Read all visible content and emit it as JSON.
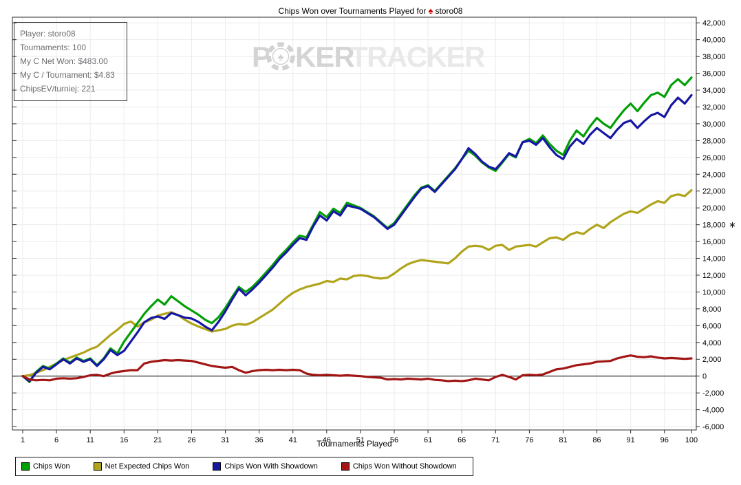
{
  "title": {
    "prefix": "Chips Won over Tournaments Played for",
    "spade_symbol": "♠",
    "player": "storo08"
  },
  "info_box": {
    "lines": [
      "Player: storo08",
      "Tournaments: 100",
      "My C Net Won: $483.00",
      "My C / Tournament: $4.83",
      "ChipsEV/turniej: 221"
    ]
  },
  "watermark": {
    "part1": "P",
    "chip_symbol": "♠",
    "part2": "KER",
    "part3": "TRACKER"
  },
  "legend": {
    "items": [
      {
        "label": "Chips Won",
        "color": "#00A005"
      },
      {
        "label": "Net Expected Chips Won",
        "color": "#AFA41A"
      },
      {
        "label": "Chips Won With Showdown",
        "color": "#1717A5"
      },
      {
        "label": "Chips Won Without Showdown",
        "color": "#A31616"
      }
    ]
  },
  "chart_data": {
    "type": "line",
    "title": "Chips Won over Tournaments Played for storo08",
    "xlabel": "Tournaments Played",
    "ylabel": "",
    "xlim": [
      1,
      100
    ],
    "ylim": [
      -6000,
      42000
    ],
    "grid": true,
    "legend_position": "bottom-left",
    "x_ticks": [
      1,
      6,
      11,
      16,
      21,
      26,
      31,
      36,
      41,
      46,
      51,
      56,
      61,
      66,
      71,
      76,
      81,
      86,
      91,
      96,
      100
    ],
    "y_ticks": [
      -6000,
      -4000,
      -2000,
      0,
      2000,
      4000,
      6000,
      8000,
      10000,
      12000,
      14000,
      16000,
      18000,
      20000,
      22000,
      24000,
      26000,
      28000,
      30000,
      32000,
      34000,
      36000,
      38000,
      40000,
      42000
    ],
    "y_axis_marker": {
      "value": 18000,
      "symbol": "∗"
    },
    "x": [
      1,
      2,
      3,
      4,
      5,
      6,
      7,
      8,
      9,
      10,
      11,
      12,
      13,
      14,
      15,
      16,
      17,
      18,
      19,
      20,
      21,
      22,
      23,
      24,
      25,
      26,
      27,
      28,
      29,
      30,
      31,
      32,
      33,
      34,
      35,
      36,
      37,
      38,
      39,
      40,
      41,
      42,
      43,
      44,
      45,
      46,
      47,
      48,
      49,
      50,
      51,
      52,
      53,
      54,
      55,
      56,
      57,
      58,
      59,
      60,
      61,
      62,
      63,
      64,
      65,
      66,
      67,
      68,
      69,
      70,
      71,
      72,
      73,
      74,
      75,
      76,
      77,
      78,
      79,
      80,
      81,
      82,
      83,
      84,
      85,
      86,
      87,
      88,
      89,
      90,
      91,
      92,
      93,
      94,
      95,
      96,
      97,
      98,
      99,
      100
    ],
    "series": [
      {
        "name": "Chips Won",
        "color": "#00A005",
        "values": [
          0,
          -700,
          500,
          1200,
          900,
          1500,
          2100,
          1600,
          2200,
          1800,
          2100,
          1300,
          2100,
          3300,
          2700,
          4100,
          5200,
          6300,
          7400,
          8300,
          9100,
          8500,
          9500,
          8900,
          8300,
          7800,
          7300,
          6700,
          6300,
          7000,
          8100,
          9400,
          10600,
          10000,
          10600,
          11400,
          12300,
          13200,
          14200,
          15000,
          15900,
          16700,
          16500,
          18000,
          19500,
          18900,
          19900,
          19400,
          20600,
          20300,
          20000,
          19500,
          19000,
          18300,
          17600,
          18200,
          19300,
          20400,
          21500,
          22400,
          22700,
          22000,
          22900,
          23800,
          24700,
          25800,
          26800,
          26200,
          25400,
          24800,
          24400,
          25400,
          26400,
          26000,
          27800,
          28200,
          27700,
          28600,
          27600,
          26800,
          26300,
          28000,
          29200,
          28500,
          29700,
          30700,
          30000,
          29500,
          30600,
          31600,
          32400,
          31500,
          32500,
          33400,
          33700,
          33200,
          34600,
          35300,
          34600,
          35500
        ]
      },
      {
        "name": "Net Expected Chips Won",
        "color": "#AFA41A",
        "values": [
          0,
          100,
          400,
          700,
          1100,
          1500,
          1900,
          2200,
          2500,
          2800,
          3200,
          3500,
          4200,
          4900,
          5500,
          6200,
          6500,
          5900,
          6400,
          6700,
          7200,
          7400,
          7600,
          7250,
          6700,
          6250,
          5900,
          5600,
          5300,
          5450,
          5600,
          6000,
          6200,
          6100,
          6400,
          6900,
          7400,
          7900,
          8600,
          9300,
          9900,
          10300,
          10600,
          10800,
          11000,
          11300,
          11200,
          11600,
          11500,
          11900,
          12000,
          11900,
          11700,
          11600,
          11700,
          12200,
          12800,
          13300,
          13600,
          13800,
          13700,
          13600,
          13500,
          13400,
          14000,
          14800,
          15400,
          15500,
          15400,
          15000,
          15500,
          15600,
          15000,
          15400,
          15500,
          15600,
          15400,
          15900,
          16400,
          16500,
          16200,
          16800,
          17100,
          16900,
          17500,
          18000,
          17600,
          18300,
          18800,
          19300,
          19600,
          19400,
          19900,
          20400,
          20800,
          20600,
          21400,
          21600,
          21400,
          22100
        ]
      },
      {
        "name": "Chips Won With Showdown",
        "color": "#1717A5",
        "values": [
          0,
          -600,
          400,
          1100,
          800,
          1400,
          2000,
          1500,
          2100,
          1700,
          2000,
          1200,
          2000,
          3100,
          2500,
          3000,
          4100,
          5200,
          6400,
          6900,
          7100,
          6800,
          7500,
          7250,
          6950,
          6850,
          6450,
          5900,
          5450,
          6450,
          7700,
          9100,
          10400,
          9600,
          10300,
          11100,
          12000,
          12900,
          13900,
          14700,
          15600,
          16400,
          16200,
          17800,
          19100,
          18500,
          19600,
          19100,
          20300,
          20100,
          19900,
          19400,
          18900,
          18200,
          17500,
          18000,
          19100,
          20200,
          21300,
          22300,
          22600,
          21900,
          22800,
          23700,
          24600,
          25800,
          27100,
          26400,
          25500,
          24900,
          24600,
          25500,
          26500,
          26100,
          27800,
          28000,
          27500,
          28300,
          27200,
          26300,
          25800,
          27300,
          28200,
          27600,
          28700,
          29500,
          28900,
          28300,
          29300,
          30100,
          30400,
          29500,
          30300,
          31000,
          31300,
          30800,
          32200,
          33100,
          32400,
          33400
        ]
      },
      {
        "name": "Chips Won Without Showdown",
        "color": "#A31616",
        "values": [
          0,
          -400,
          -500,
          -450,
          -500,
          -300,
          -250,
          -300,
          -250,
          -100,
          100,
          150,
          0,
          300,
          500,
          600,
          700,
          700,
          1500,
          1700,
          1800,
          1900,
          1850,
          1900,
          1850,
          1800,
          1600,
          1400,
          1200,
          1100,
          1000,
          1100,
          700,
          400,
          600,
          700,
          750,
          700,
          750,
          700,
          750,
          700,
          300,
          150,
          100,
          150,
          100,
          50,
          100,
          50,
          0,
          -100,
          -150,
          -200,
          -400,
          -350,
          -400,
          -300,
          -350,
          -400,
          -300,
          -450,
          -500,
          -600,
          -550,
          -600,
          -500,
          -300,
          -400,
          -500,
          -100,
          150,
          -100,
          -400,
          100,
          150,
          100,
          200,
          500,
          800,
          900,
          1100,
          1300,
          1400,
          1500,
          1700,
          1750,
          1800,
          2100,
          2300,
          2450,
          2300,
          2250,
          2350,
          2200,
          2100,
          2150,
          2100,
          2050,
          2100
        ]
      }
    ]
  }
}
